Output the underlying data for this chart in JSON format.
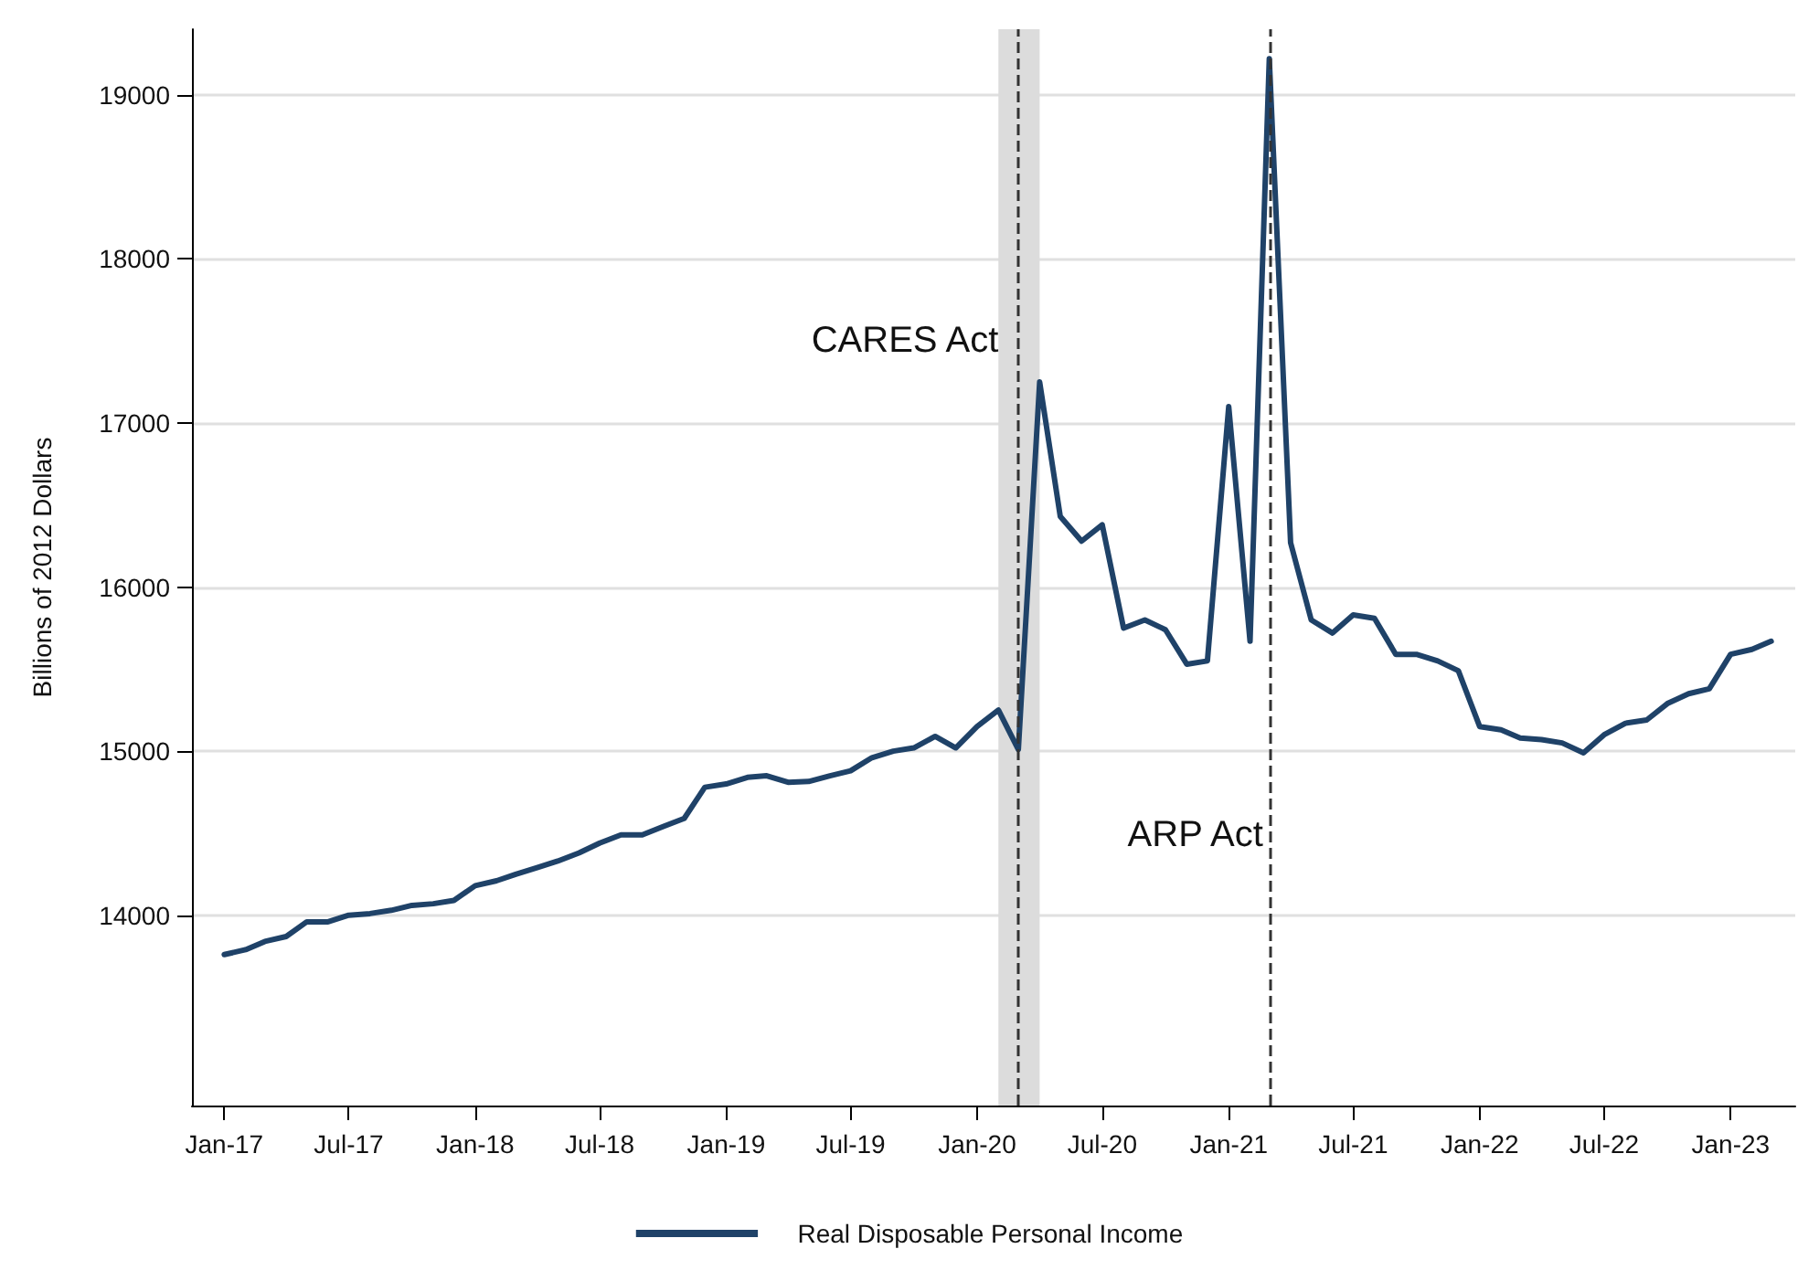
{
  "chart_data": {
    "type": "line",
    "ylabel": "Billions of 2012 Dollars",
    "x": [
      "2017-01",
      "2017-02",
      "2017-03",
      "2017-04",
      "2017-05",
      "2017-06",
      "2017-07",
      "2017-08",
      "2017-09",
      "2017-10",
      "2017-11",
      "2017-12",
      "2018-01",
      "2018-02",
      "2018-03",
      "2018-04",
      "2018-05",
      "2018-06",
      "2018-07",
      "2018-08",
      "2018-09",
      "2018-10",
      "2018-11",
      "2018-12",
      "2019-01",
      "2019-02",
      "2019-03",
      "2019-04",
      "2019-05",
      "2019-06",
      "2019-07",
      "2019-08",
      "2019-09",
      "2019-10",
      "2019-11",
      "2019-12",
      "2020-01",
      "2020-02",
      "2020-03",
      "2020-04",
      "2020-05",
      "2020-06",
      "2020-07",
      "2020-08",
      "2020-09",
      "2020-10",
      "2020-11",
      "2020-12",
      "2021-01",
      "2021-02",
      "2021-03",
      "2021-04",
      "2021-05",
      "2021-06",
      "2021-07",
      "2021-08",
      "2021-09",
      "2021-10",
      "2021-11",
      "2021-12",
      "2022-01",
      "2022-02",
      "2022-03",
      "2022-04",
      "2022-05",
      "2022-06",
      "2022-07",
      "2022-08",
      "2022-09",
      "2022-10",
      "2022-11",
      "2022-12",
      "2023-01",
      "2023-02",
      "2023-03"
    ],
    "series": [
      {
        "name": "Real Disposable Personal Income",
        "color": "#1f4268",
        "values": [
          13760,
          13790,
          13840,
          13870,
          13960,
          13960,
          14000,
          14010,
          14030,
          14060,
          14070,
          14090,
          14180,
          14210,
          14250,
          14290,
          14330,
          14380,
          14440,
          14490,
          14490,
          14540,
          14590,
          14780,
          14800,
          14840,
          14850,
          14810,
          14815,
          14850,
          14880,
          14960,
          15000,
          15020,
          15090,
          15020,
          15150,
          15250,
          15010,
          17250,
          16430,
          16280,
          16380,
          15750,
          15800,
          15740,
          15530,
          15550,
          17100,
          15670,
          19220,
          16270,
          15800,
          15720,
          15830,
          15810,
          15590,
          15590,
          15550,
          15490,
          15150,
          15130,
          15080,
          15070,
          15050,
          14990,
          15100,
          15170,
          15190,
          15290,
          15350,
          15380,
          15590,
          15620,
          15670
        ]
      }
    ],
    "xlim": [
      "2016-11-15",
      "2023-04-05"
    ],
    "xticks": [
      {
        "value": "2017-01",
        "label": "Jan-17"
      },
      {
        "value": "2017-07",
        "label": "Jul-17"
      },
      {
        "value": "2018-01",
        "label": "Jan-18"
      },
      {
        "value": "2018-07",
        "label": "Jul-18"
      },
      {
        "value": "2019-01",
        "label": "Jan-19"
      },
      {
        "value": "2019-07",
        "label": "Jul-19"
      },
      {
        "value": "2020-01",
        "label": "Jan-20"
      },
      {
        "value": "2020-07",
        "label": "Jul-20"
      },
      {
        "value": "2021-01",
        "label": "Jan-21"
      },
      {
        "value": "2021-07",
        "label": "Jul-21"
      },
      {
        "value": "2022-01",
        "label": "Jan-22"
      },
      {
        "value": "2022-07",
        "label": "Jul-22"
      },
      {
        "value": "2023-01",
        "label": "Jan-23"
      }
    ],
    "ylim": [
      12840,
      19400
    ],
    "yticks": [
      14000,
      15000,
      16000,
      17000,
      18000,
      19000
    ],
    "grid": "y",
    "legend": "bottom",
    "line_style": "solid",
    "marker": "none",
    "ref_lines": [
      {
        "axis": "x",
        "value": "2020-03",
        "color": "#333333",
        "line_style": "dashed"
      },
      {
        "axis": "x",
        "value": "2021-03",
        "color": "#333333",
        "line_style": "dashed"
      }
    ],
    "bands": [
      {
        "axis": "x",
        "from": "2020-02",
        "to": "2020-04",
        "color": "#dcdcdc"
      }
    ],
    "annotations": [
      {
        "text": "CARES Act",
        "x": "2020-02",
        "y": 17500
      },
      {
        "text": "ARP Act",
        "x": "2021-02-20",
        "y": 14490
      }
    ]
  }
}
